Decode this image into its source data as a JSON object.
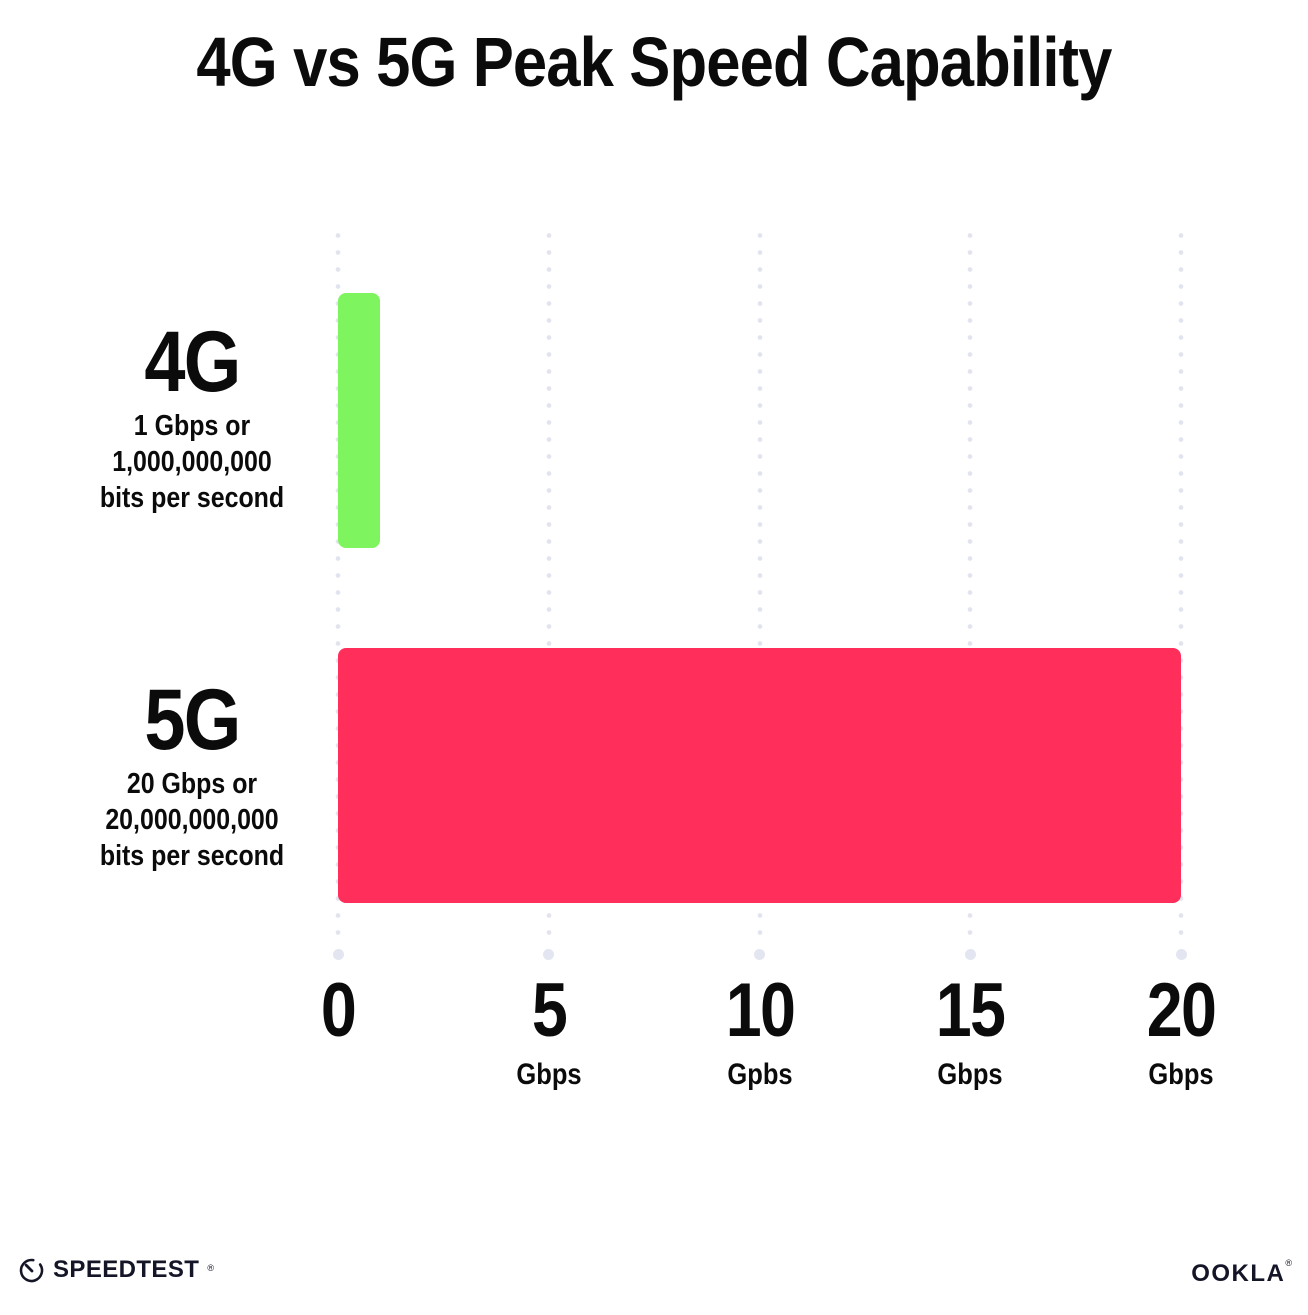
{
  "title": "4G vs 5G Peak Speed Capability",
  "colors": {
    "bar_4g_green": "#7ef45e",
    "bar_5g_pink": "#ff2e5a",
    "gridline_dot": "#e1e4ee",
    "text": "#0b0b0c"
  },
  "chart_data": {
    "type": "bar",
    "orientation": "horizontal",
    "title": "4G vs 5G Peak Speed Capability",
    "categories": [
      "4G",
      "5G"
    ],
    "values": [
      1,
      20
    ],
    "bar_colors": [
      "#7ef45e",
      "#ff2e5a"
    ],
    "category_sublabels": [
      [
        "1 Gbps or",
        "1,000,000,000",
        "bits per second"
      ],
      [
        "20 Gbps or",
        "20,000,000,000",
        "bits per second"
      ]
    ],
    "x_ticks": [
      0,
      5,
      10,
      15,
      20
    ],
    "x_tick_labels": [
      "0",
      "5",
      "10",
      "15",
      "20"
    ],
    "x_tick_units": [
      "",
      "Gbps",
      "Gpbs",
      "Gbps",
      "Gbps"
    ],
    "xlim": [
      0,
      20
    ],
    "xlabel": "",
    "ylabel": "",
    "grid": "vertical-dotted",
    "legend": "none"
  },
  "rows": [
    {
      "label": "4G",
      "sub1": "1 Gbps or",
      "sub2": "1,000,000,000",
      "sub3": "bits per second"
    },
    {
      "label": "5G",
      "sub1": "20 Gbps or",
      "sub2": "20,000,000,000",
      "sub3": "bits per second"
    }
  ],
  "axis": {
    "ticks": [
      {
        "num": "0",
        "unit": ""
      },
      {
        "num": "5",
        "unit": "Gbps"
      },
      {
        "num": "10",
        "unit": "Gpbs"
      },
      {
        "num": "15",
        "unit": "Gbps"
      },
      {
        "num": "20",
        "unit": "Gbps"
      }
    ]
  },
  "footer": {
    "speedtest_label": "SPEEDTEST",
    "speedtest_mark": "®",
    "ookla_label": "OOKLA",
    "ookla_mark": "®"
  }
}
